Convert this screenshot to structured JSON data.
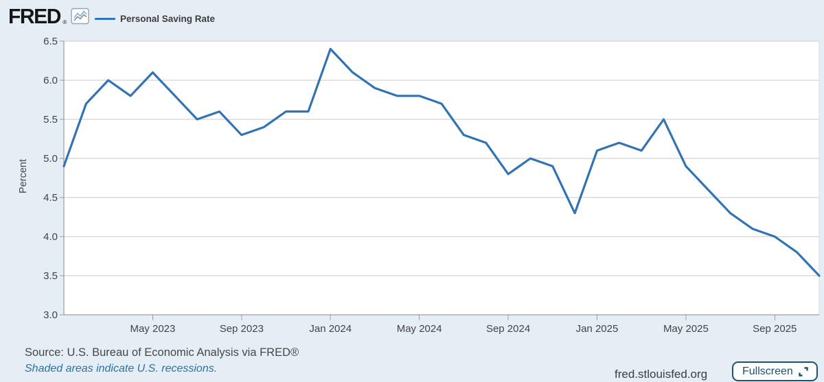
{
  "header": {
    "logo_text": "FRED",
    "logo_registered": "®",
    "legend_label": "Personal Saving Rate"
  },
  "chart_data": {
    "type": "line",
    "series_name": "Personal Saving Rate",
    "ylabel": "Percent",
    "ylim": [
      3.0,
      6.5
    ],
    "y_ticks": [
      6.5,
      6.0,
      5.5,
      5.0,
      4.5,
      4.0,
      3.5,
      3.0
    ],
    "x": [
      "Jan 2023",
      "Feb 2023",
      "Mar 2023",
      "Apr 2023",
      "May 2023",
      "Jun 2023",
      "Jul 2023",
      "Aug 2023",
      "Sep 2023",
      "Oct 2023",
      "Nov 2023",
      "Dec 2023",
      "Jan 2024",
      "Feb 2024",
      "Mar 2024",
      "Apr 2024",
      "May 2024",
      "Jun 2024",
      "Jul 2024",
      "Aug 2024",
      "Sep 2024",
      "Oct 2024",
      "Nov 2024",
      "Dec 2024",
      "Jan 2025",
      "Feb 2025",
      "Mar 2025",
      "Apr 2025",
      "May 2025",
      "Jun 2025",
      "Jul 2025",
      "Aug 2025",
      "Sep 2025",
      "Oct 2025",
      "Nov 2025"
    ],
    "values": [
      4.9,
      5.7,
      6.0,
      5.8,
      6.1,
      5.8,
      5.5,
      5.6,
      5.3,
      5.4,
      5.6,
      5.6,
      6.4,
      6.1,
      5.9,
      5.8,
      5.8,
      5.7,
      5.3,
      5.2,
      4.8,
      5.0,
      4.9,
      4.3,
      5.1,
      5.2,
      5.1,
      5.5,
      4.9,
      4.6,
      4.3,
      4.1,
      4.0,
      3.8,
      3.5
    ],
    "x_tick_labels": [
      "May 2023",
      "Sep 2023",
      "Jan 2024",
      "May 2024",
      "Sep 2024",
      "Jan 2025",
      "May 2025",
      "Sep 2025"
    ],
    "x_tick_positions": [
      4,
      8,
      12,
      16,
      20,
      24,
      28,
      32
    ],
    "line_color": "#3273b4",
    "grid": true,
    "legend_position": "top-left"
  },
  "footer": {
    "source_text": "Source: U.S. Bureau of Economic Analysis via FRED®",
    "recessions_note": "Shaded areas indicate U.S. recessions.",
    "site_url": "fred.stlouisfed.org",
    "fullscreen_label": "Fullscreen"
  },
  "colors": {
    "background": "#e5edf5",
    "plot_background": "#ffffff",
    "gridline": "#c9c9c9",
    "axis": "#85898d",
    "tick": "#9aa0a5",
    "axis_text": "#444444",
    "accent_blue": "#3273b4",
    "link_blue": "#2b72a0",
    "button_navy": "#20506e"
  }
}
